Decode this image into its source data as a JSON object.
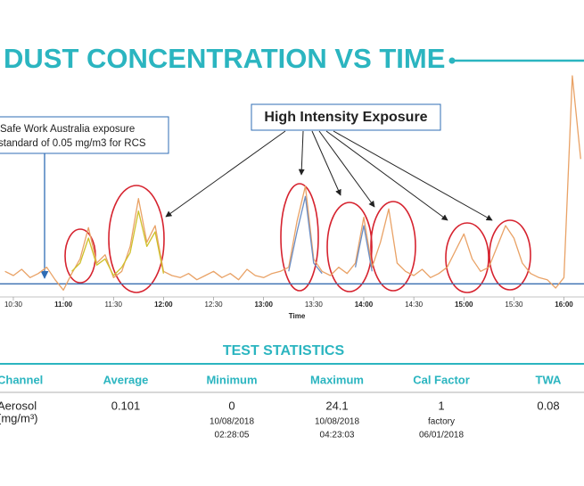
{
  "chart_data": {
    "type": "line",
    "title": "DUST CONCENTRATION VS TIME",
    "x_label": "Time",
    "annotations": [
      "High Intensity Exposure",
      "Safe Work Australia exposure",
      "standard of 0.05 mg/m3 for RCS"
    ],
    "x": [
      625,
      630,
      635,
      640,
      645,
      650,
      655,
      660,
      665,
      670,
      675,
      680,
      685,
      690,
      695,
      700,
      705,
      710,
      715,
      720,
      725,
      730,
      735,
      740,
      745,
      750,
      755,
      760,
      765,
      770,
      775,
      780,
      785,
      790,
      795,
      800,
      805,
      810,
      815,
      820,
      825,
      830,
      835,
      840,
      845,
      850,
      855,
      860,
      865,
      870,
      875,
      880,
      885,
      890,
      895,
      900,
      905,
      910,
      915,
      920,
      925,
      930,
      935,
      940,
      945,
      950,
      955,
      960,
      965,
      970
    ],
    "series": [
      {
        "color": "#e9a266",
        "values": [
          6,
          4,
          7,
          3,
          5,
          8,
          2,
          -3,
          5,
          12,
          27,
          10,
          14,
          3,
          6,
          18,
          41,
          20,
          28,
          6,
          4,
          3,
          5,
          2,
          4,
          6,
          3,
          5,
          2,
          7,
          4,
          3,
          5,
          6,
          8,
          30,
          47,
          12,
          6,
          4,
          8,
          5,
          10,
          32,
          8,
          20,
          36,
          10,
          6,
          4,
          7,
          3,
          5,
          8,
          16,
          24,
          12,
          6,
          8,
          18,
          28,
          22,
          10,
          5,
          3,
          2,
          -2,
          3,
          100,
          60
        ]
      },
      {
        "color": "#cfc02a",
        "values": [
          null,
          null,
          null,
          null,
          null,
          null,
          null,
          null,
          6,
          10,
          22,
          9,
          12,
          4,
          8,
          15,
          35,
          18,
          25,
          5,
          null,
          null,
          null,
          null,
          null,
          null,
          null,
          null,
          null,
          null,
          null,
          null,
          null,
          null,
          null,
          null,
          null,
          null,
          null,
          null,
          null,
          null,
          null,
          null,
          null,
          null,
          null,
          null,
          null,
          null,
          null,
          null,
          null,
          null,
          null,
          null,
          null,
          null,
          null,
          null,
          null,
          null,
          null,
          null,
          null,
          null,
          null,
          null,
          null,
          null
        ]
      },
      {
        "color": "#6b8dc4",
        "values": [
          null,
          null,
          null,
          null,
          null,
          null,
          null,
          null,
          null,
          null,
          null,
          null,
          null,
          null,
          null,
          null,
          null,
          null,
          null,
          null,
          null,
          null,
          null,
          null,
          null,
          null,
          null,
          null,
          null,
          null,
          null,
          null,
          null,
          null,
          6,
          25,
          42,
          10,
          5,
          null,
          null,
          null,
          8,
          28,
          6,
          null,
          null,
          null,
          null,
          null,
          null,
          null,
          null,
          null,
          null,
          null,
          null,
          null,
          null,
          null,
          null,
          null,
          null,
          null,
          null,
          null,
          null,
          null,
          null,
          null
        ]
      }
    ],
    "xlim": [
      622,
      972
    ],
    "ylim": [
      -5,
      100
    ],
    "xticks": [
      {
        "value": 630,
        "label": "10:30"
      },
      {
        "value": 660,
        "label": "11:00"
      },
      {
        "value": 690,
        "label": "11:30"
      },
      {
        "value": 720,
        "label": "12:00"
      },
      {
        "value": 750,
        "label": "12:30"
      },
      {
        "value": 780,
        "label": "13:00"
      },
      {
        "value": 810,
        "label": "13:30"
      },
      {
        "value": 840,
        "label": "14:00"
      },
      {
        "value": 870,
        "label": "14:30"
      },
      {
        "value": 900,
        "label": "15:00"
      },
      {
        "value": 930,
        "label": "15:30"
      },
      {
        "value": 960,
        "label": "16:00"
      }
    ],
    "baseline_color": "#3a6fb0"
  },
  "table": {
    "title": "TEST STATISTICS",
    "headers": [
      "Channel",
      "Average",
      "Minimum",
      "Maximum",
      "Cal Factor",
      "TWA"
    ],
    "rows": [
      [
        [
          "Aerosol",
          "(mg/m³)"
        ],
        [
          "0.101"
        ],
        [
          "0",
          "10/08/2018",
          "02:28:05"
        ],
        [
          "24.1",
          "10/08/2018",
          "04:23:03"
        ],
        [
          "1",
          "factory",
          "06/01/2018"
        ],
        [
          "0.08"
        ]
      ]
    ]
  }
}
